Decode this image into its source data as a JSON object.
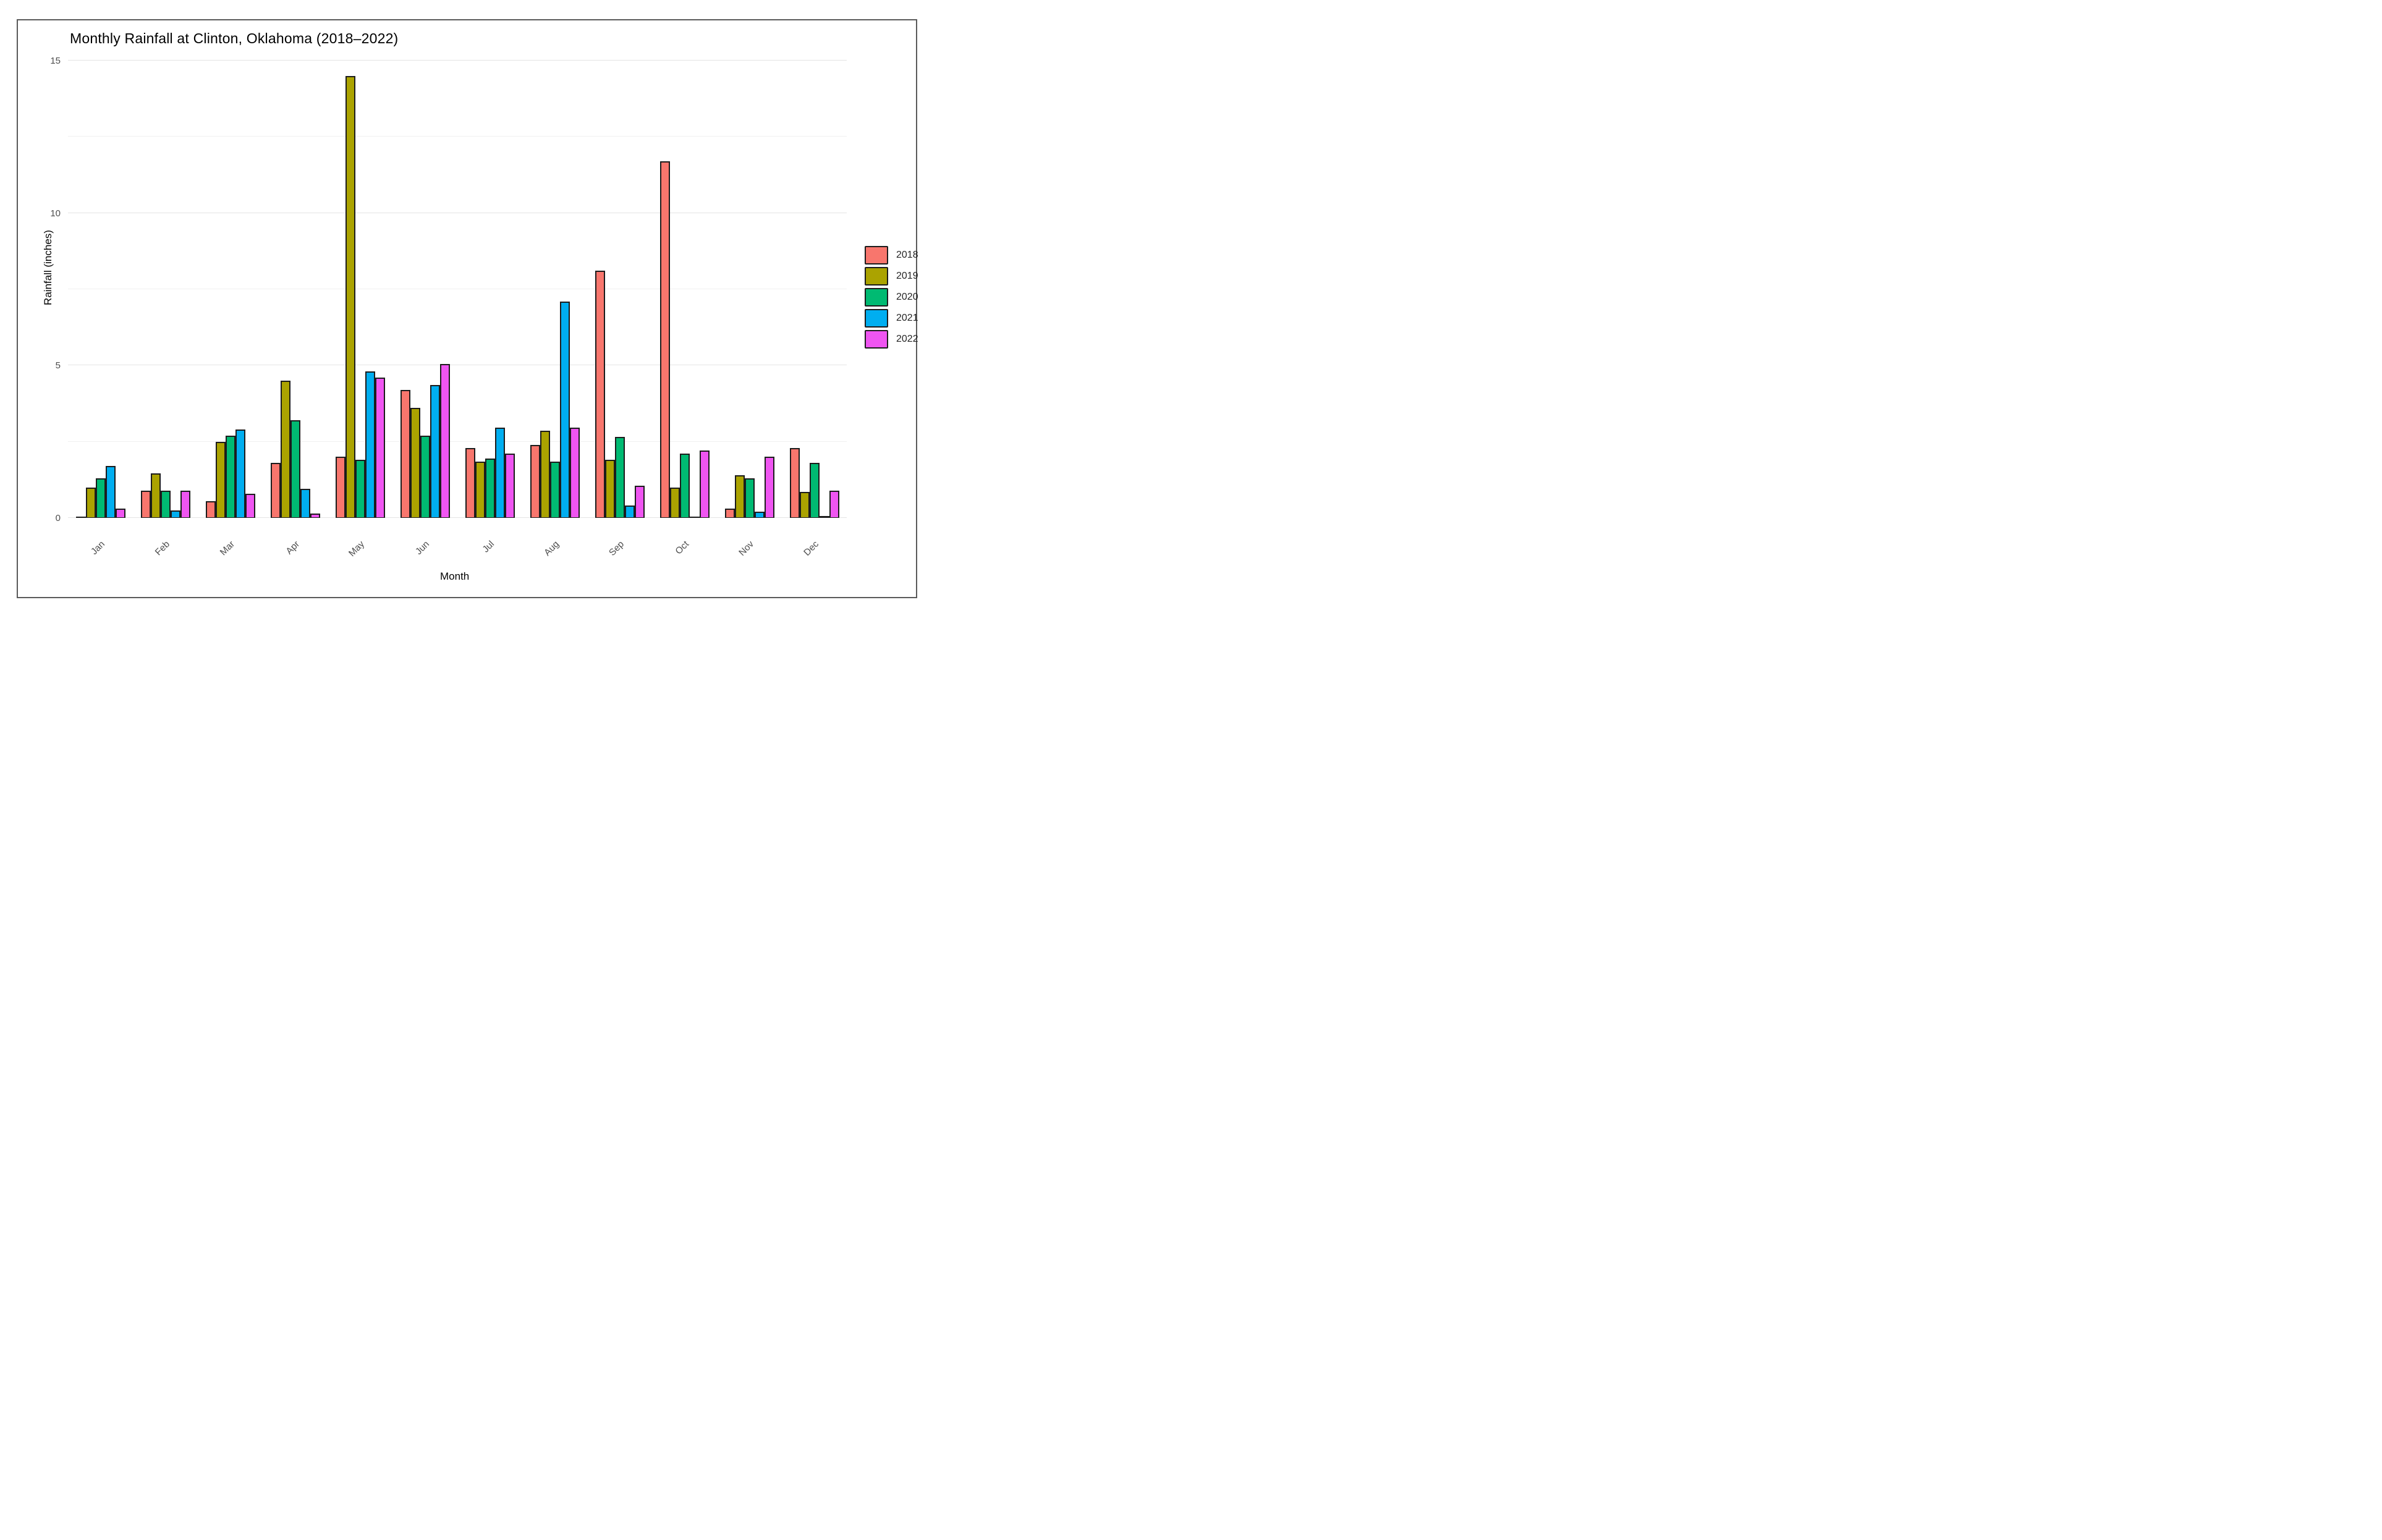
{
  "figure": {
    "title": "Monthly Rainfall at Clinton, Oklahoma (2018–2022)"
  },
  "chart_data": {
    "type": "bar",
    "title": "Monthly Rainfall at Clinton, Oklahoma (2018–2022)",
    "xlabel": "Month",
    "ylabel": "Rainfall (inches)",
    "categories": [
      "Jan",
      "Feb",
      "Mar",
      "Apr",
      "May",
      "Jun",
      "Jul",
      "Aug",
      "Sep",
      "Oct",
      "Nov",
      "Dec"
    ],
    "series": [
      {
        "name": "2018",
        "color": "#F8766D",
        "values": [
          0,
          0.9,
          0.55,
          1.8,
          2.0,
          4.2,
          2.3,
          2.4,
          8.1,
          11.7,
          0.3,
          2.3
        ]
      },
      {
        "name": "2019",
        "color": "#ABA300",
        "values": [
          1.0,
          1.45,
          2.5,
          4.5,
          14.5,
          3.6,
          1.85,
          2.85,
          1.9,
          1.0,
          1.4,
          0.85
        ]
      },
      {
        "name": "2020",
        "color": "#00BA72",
        "values": [
          1.3,
          0.9,
          2.7,
          3.2,
          1.9,
          2.7,
          1.95,
          1.85,
          2.65,
          2.1,
          1.3,
          1.8
        ]
      },
      {
        "name": "2021",
        "color": "#00AEF0",
        "values": [
          1.7,
          0.25,
          2.9,
          0.95,
          4.8,
          4.35,
          2.95,
          7.1,
          0.4,
          0,
          0.2,
          0.05
        ]
      },
      {
        "name": "2022",
        "color": "#EF55F1",
        "values": [
          0.3,
          0.9,
          0.8,
          0.15,
          4.6,
          5.05,
          2.1,
          2.95,
          1.05,
          2.2,
          2.0,
          0.9
        ]
      }
    ],
    "yticks": [
      0,
      5,
      10,
      15
    ],
    "minor_gridlines": [
      2.5,
      7.5,
      12.5
    ],
    "ylim": [
      0,
      15
    ],
    "grid": "horizontal-only",
    "legend_position": "right",
    "bar_outline_color": "#1c1c1c",
    "x_label_rotation_deg": 45
  }
}
